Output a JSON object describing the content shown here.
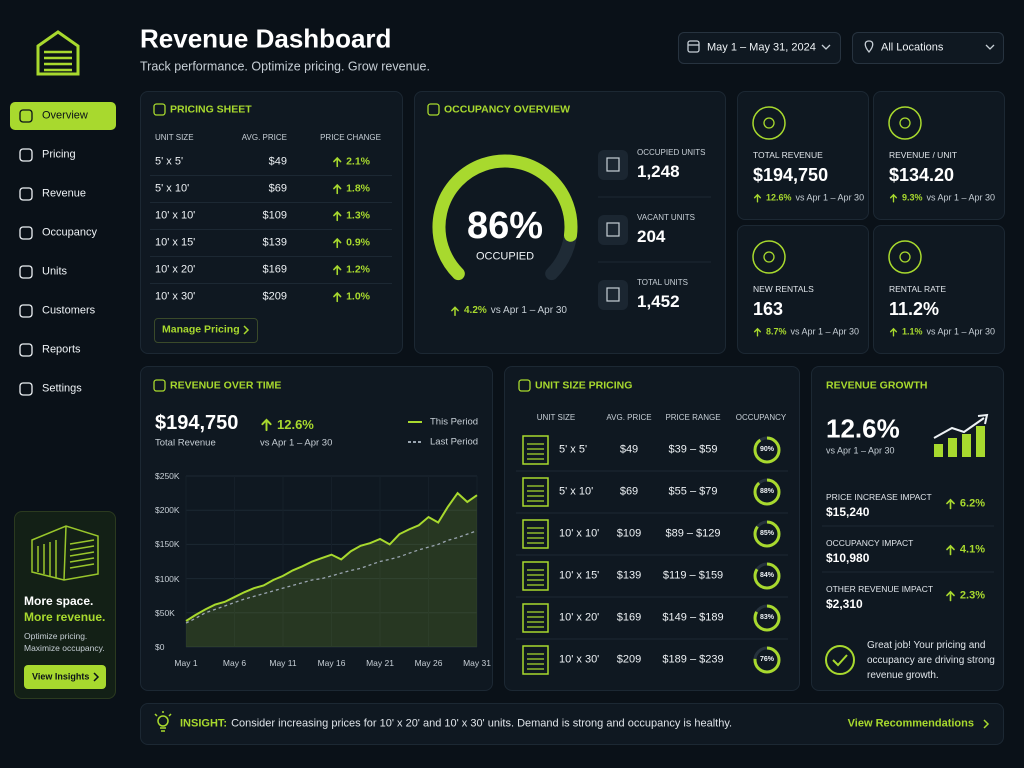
{
  "header": {
    "title": "Revenue Dashboard",
    "subtitle": "Track performance. Optimize pricing. Grow revenue.",
    "date_range": "May 1 – May 31, 2024",
    "location": "All Locations"
  },
  "sidebar": {
    "nav": [
      "Overview",
      "Pricing",
      "Revenue",
      "Occupancy",
      "Units",
      "Customers",
      "Reports",
      "Settings"
    ],
    "active_index": 0,
    "promo": {
      "line1": "More space.",
      "line2": "More revenue.",
      "text1": "Optimize pricing.",
      "text2": "Maximize occupancy.",
      "button": "View Insights"
    }
  },
  "pricing_sheet": {
    "title": "PRICING SHEET",
    "columns": [
      "UNIT SIZE",
      "AVG. PRICE",
      "PRICE CHANGE"
    ],
    "rows": [
      [
        "5' x 5'",
        "$49",
        "2.1%"
      ],
      [
        "5' x 10'",
        "$69",
        "1.8%"
      ],
      [
        "10' x 10'",
        "$109",
        "1.3%"
      ],
      [
        "10' x 15'",
        "$139",
        "0.9%"
      ],
      [
        "10' x 20'",
        "$169",
        "1.2%"
      ],
      [
        "10' x 30'",
        "$209",
        "1.0%"
      ]
    ],
    "button": "Manage Pricing"
  },
  "occupancy": {
    "title": "OCCUPANCY OVERVIEW",
    "rate": {
      "value": 86,
      "label": "86%"
    },
    "rate_label": "OCCUPIED",
    "change": "4.2%",
    "compare": "vs Apr 1 – Apr 30",
    "stats": [
      {
        "label": "OCCUPIED UNITS",
        "value": "1,248"
      },
      {
        "label": "VACANT UNITS",
        "value": "204"
      },
      {
        "label": "TOTAL UNITS",
        "value": "1,452"
      }
    ]
  },
  "kpis": [
    {
      "label": "TOTAL REVENUE",
      "value": "$194,750",
      "change": "12.6%",
      "compare": "vs Apr 1 – Apr 30"
    },
    {
      "label": "REVENUE / UNIT",
      "value": "$134.20",
      "change": "9.3%",
      "compare": "vs Apr 1 – Apr 30"
    },
    {
      "label": "NEW RENTALS",
      "value": "163",
      "change": "8.7%",
      "compare": "vs Apr 1 – Apr 30"
    },
    {
      "label": "RENTAL RATE",
      "value": "11.2%",
      "change": "1.1%",
      "compare": "vs Apr 1 – Apr 30"
    }
  ],
  "chart_data": {
    "type": "line",
    "title": "REVENUE OVER TIME",
    "total": "$194,750",
    "total_label": "Total Revenue",
    "change": "12.6%",
    "compare": "vs Apr 1 – Apr 30",
    "categories": [
      "May 1",
      null,
      null,
      null,
      null,
      "May 6",
      null,
      null,
      null,
      null,
      "May 11",
      null,
      null,
      null,
      null,
      "May 16",
      null,
      null,
      null,
      null,
      "May 21",
      null,
      null,
      null,
      null,
      "May 26",
      null,
      null,
      null,
      null,
      "May 31"
    ],
    "series": [
      {
        "name": "This Period",
        "color": "#a8d92e",
        "dashed": false,
        "values": [
          38000,
          47000,
          55000,
          62000,
          66000,
          73000,
          80000,
          86000,
          90000,
          98000,
          104000,
          112000,
          118000,
          125000,
          130000,
          135000,
          128000,
          140000,
          148000,
          152000,
          158000,
          150000,
          165000,
          172000,
          178000,
          190000,
          182000,
          205000,
          225000,
          212000,
          222000
        ]
      },
      {
        "name": "Last Period",
        "color": "#9aa5b1",
        "dashed": true,
        "values": [
          35000,
          42000,
          50000,
          55000,
          60000,
          65000,
          70000,
          74000,
          78000,
          82000,
          86000,
          90000,
          94000,
          98000,
          100000,
          104000,
          108000,
          112000,
          115000,
          120000,
          125000,
          128000,
          132000,
          137000,
          142000,
          146000,
          150000,
          156000,
          160000,
          165000,
          170000
        ]
      }
    ],
    "ylim": [
      0,
      250000
    ],
    "yticks": [
      {
        "value": 0,
        "label": "$0"
      },
      {
        "value": 50000,
        "label": "$50K"
      },
      {
        "value": 100000,
        "label": "$100K"
      },
      {
        "value": 150000,
        "label": "$150K"
      },
      {
        "value": 200000,
        "label": "$200K"
      },
      {
        "value": 250000,
        "label": "$250K"
      }
    ],
    "grid": true
  },
  "unit_pricing": {
    "title": "UNIT SIZE PRICING",
    "columns": [
      "UNIT SIZE",
      "AVG. PRICE",
      "PRICE RANGE",
      "OCCUPANCY"
    ],
    "rows": [
      {
        "size": "5' x 5'",
        "price": "$49",
        "range": "$39 – $59",
        "occupancy": {
          "value": 90,
          "label": "90%"
        }
      },
      {
        "size": "5' x 10'",
        "price": "$69",
        "range": "$55 – $79",
        "occupancy": {
          "value": 88,
          "label": "88%"
        }
      },
      {
        "size": "10' x 10'",
        "price": "$109",
        "range": "$89 – $129",
        "occupancy": {
          "value": 85,
          "label": "85%"
        }
      },
      {
        "size": "10' x 15'",
        "price": "$139",
        "range": "$119 – $159",
        "occupancy": {
          "value": 84,
          "label": "84%"
        }
      },
      {
        "size": "10' x 20'",
        "price": "$169",
        "range": "$149 – $189",
        "occupancy": {
          "value": 83,
          "label": "83%"
        }
      },
      {
        "size": "10' x 30'",
        "price": "$209",
        "range": "$189 – $239",
        "occupancy": {
          "value": 76,
          "label": "76%"
        }
      }
    ]
  },
  "revenue_growth": {
    "title": "REVENUE GROWTH",
    "value": "12.6%",
    "compare": "vs Apr 1 – Apr 30",
    "impacts": [
      {
        "label": "PRICE INCREASE IMPACT",
        "value": "$15,240",
        "change": "6.2%"
      },
      {
        "label": "OCCUPANCY IMPACT",
        "value": "$10,980",
        "change": "4.1%"
      },
      {
        "label": "OTHER REVENUE IMPACT",
        "value": "$2,310",
        "change": "2.3%"
      }
    ],
    "message": "Great job! Your pricing and occupancy are driving strong revenue growth."
  },
  "insight": {
    "label": "INSIGHT:",
    "text": "Consider increasing prices for 10' x 20' and 10' x 30' units. Demand is strong and occupancy is healthy.",
    "link": "View Recommendations"
  }
}
